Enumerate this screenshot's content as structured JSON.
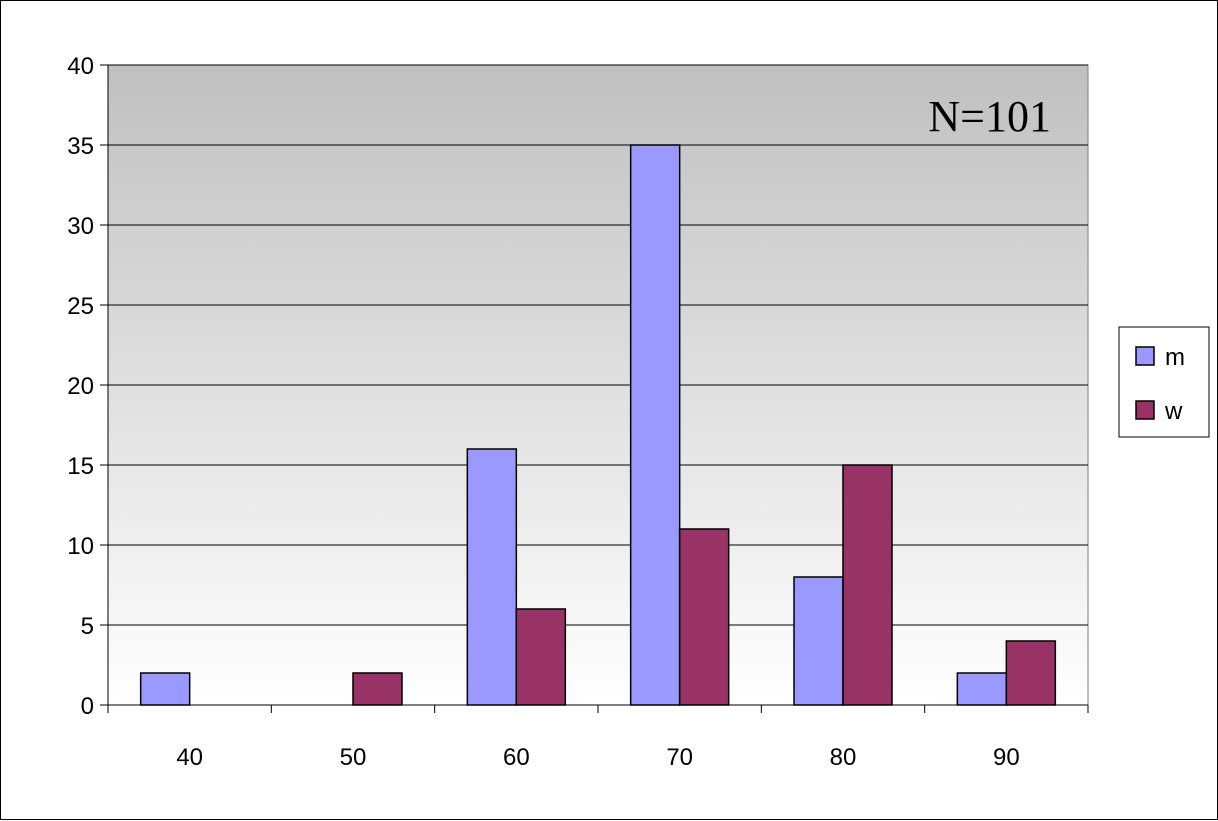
{
  "chart_data": {
    "type": "bar",
    "title": "",
    "xlabel": "",
    "ylabel": "",
    "categories": [
      "40",
      "50",
      "60",
      "70",
      "80",
      "90"
    ],
    "series": [
      {
        "name": "m",
        "color": "#9999ff",
        "values": [
          2,
          0,
          16,
          35,
          8,
          2
        ]
      },
      {
        "name": "w",
        "color": "#993366",
        "values": [
          0,
          2,
          6,
          11,
          15,
          4
        ]
      }
    ],
    "ylim": [
      0,
      40
    ],
    "yticks": [
      0,
      5,
      10,
      15,
      20,
      25,
      30,
      35,
      40
    ],
    "grid": true,
    "legend_position": "right",
    "annotation": "N=101",
    "plot_background": "gradient gray to white"
  }
}
